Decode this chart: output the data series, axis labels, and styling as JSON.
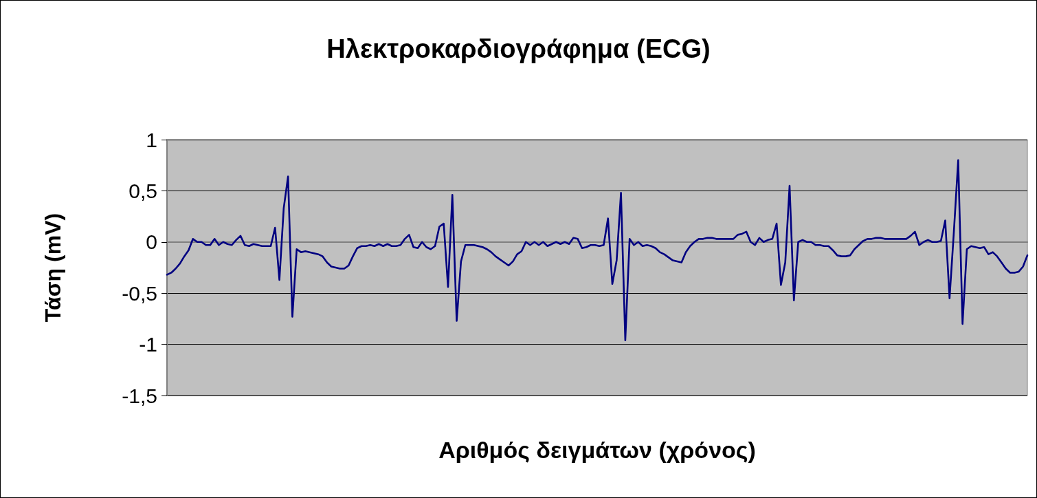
{
  "chart_data": {
    "type": "line",
    "title": "Ηλεκτροκαρδιογράφημα (ECG)",
    "xlabel": "Αριθμός δειγμάτων (χρόνος)",
    "ylabel": "Τάση (mV)",
    "categories": [
      null,
      null,
      null,
      null,
      null,
      null,
      null,
      null,
      null,
      null,
      null,
      null,
      null,
      null,
      null,
      null,
      null,
      null,
      null,
      null,
      null,
      null,
      null,
      null,
      null,
      null,
      null,
      null,
      null,
      null,
      null,
      null,
      null,
      null,
      null,
      null,
      null,
      null,
      null,
      null,
      null,
      null,
      null,
      null,
      null,
      null,
      null,
      null,
      null,
      null,
      null,
      null,
      null,
      null,
      null,
      null,
      null,
      null,
      null,
      null,
      null,
      null,
      null,
      null,
      null,
      null,
      null,
      null,
      null,
      null,
      null,
      null,
      null,
      null,
      null,
      null,
      null,
      null,
      null,
      null,
      null,
      null,
      null,
      null,
      null,
      null,
      null,
      null,
      null,
      null,
      null,
      null,
      null,
      null,
      null,
      null,
      null,
      null,
      null,
      null,
      null,
      null,
      null,
      null,
      null,
      null,
      null,
      null,
      null,
      null,
      null,
      null,
      null,
      null,
      null,
      null,
      null,
      null,
      null,
      null,
      null,
      null,
      null,
      null,
      null,
      null,
      null,
      null,
      null,
      null,
      null,
      null,
      null,
      null,
      null,
      null,
      null,
      null,
      null,
      null,
      null,
      null,
      null,
      null,
      null,
      null,
      null,
      null,
      null,
      null,
      null,
      null,
      null,
      null,
      null,
      null,
      null,
      null,
      null,
      null,
      null,
      null,
      null,
      null,
      null,
      null,
      null,
      null,
      null,
      null,
      null,
      null,
      null,
      null,
      null,
      null,
      null,
      null,
      null,
      null,
      null,
      null,
      null,
      null,
      null,
      null,
      null,
      null,
      null,
      null,
      null,
      null,
      null,
      null,
      null,
      null,
      null,
      null,
      null,
      null
    ],
    "series": [
      {
        "color": "#000080",
        "values": [
          -0.32,
          -0.3,
          -0.26,
          -0.21,
          -0.14,
          -0.08,
          0.03,
          0,
          0,
          -0.03,
          -0.03,
          0.03,
          -0.03,
          0,
          -0.02,
          -0.03,
          0.02,
          0.06,
          -0.03,
          -0.04,
          -0.02,
          -0.03,
          -0.04,
          -0.04,
          -0.04,
          0.14,
          -0.37,
          0.33,
          0.64,
          -0.73,
          -0.07,
          -0.1,
          -0.09,
          -0.1,
          -0.11,
          -0.12,
          -0.14,
          -0.2,
          -0.24,
          -0.25,
          -0.26,
          -0.26,
          -0.23,
          -0.14,
          -0.06,
          -0.04,
          -0.04,
          -0.03,
          -0.04,
          -0.02,
          -0.04,
          -0.02,
          -0.04,
          -0.04,
          -0.03,
          0.03,
          0.07,
          -0.05,
          -0.06,
          0,
          -0.05,
          -0.07,
          -0.04,
          0.15,
          0.18,
          -0.44,
          0.46,
          -0.77,
          -0.19,
          -0.03,
          -0.03,
          -0.03,
          -0.04,
          -0.05,
          -0.07,
          -0.1,
          -0.14,
          -0.17,
          -0.2,
          -0.23,
          -0.19,
          -0.12,
          -0.09,
          0,
          -0.03,
          0,
          -0.03,
          0,
          -0.04,
          -0.02,
          0,
          -0.02,
          0,
          -0.02,
          0.04,
          0.03,
          -0.06,
          -0.05,
          -0.03,
          -0.03,
          -0.04,
          -0.03,
          0.23,
          -0.41,
          -0.18,
          0.48,
          -0.96,
          0.03,
          -0.03,
          0,
          -0.04,
          -0.03,
          -0.04,
          -0.06,
          -0.1,
          -0.12,
          -0.15,
          -0.18,
          -0.19,
          -0.2,
          -0.1,
          -0.04,
          0,
          0.03,
          0.03,
          0.04,
          0.04,
          0.03,
          0.03,
          0.03,
          0.03,
          0.03,
          0.07,
          0.08,
          0.1,
          0,
          -0.03,
          0.04,
          0,
          0.02,
          0.03,
          0.18,
          -0.42,
          -0.2,
          0.55,
          -0.57,
          0,
          0.02,
          0,
          0,
          -0.03,
          -0.03,
          -0.04,
          -0.04,
          -0.08,
          -0.13,
          -0.14,
          -0.14,
          -0.13,
          -0.07,
          -0.03,
          0.01,
          0.03,
          0.03,
          0.04,
          0.04,
          0.03,
          0.03,
          0.03,
          0.03,
          0.03,
          0.03,
          0.06,
          0.1,
          -0.03,
          0,
          0.02,
          0,
          0,
          0.01,
          0.21,
          -0.55,
          0.1,
          0.8,
          -0.8,
          -0.07,
          -0.04,
          -0.05,
          -0.06,
          -0.05,
          -0.12,
          -0.1,
          -0.14,
          -0.2,
          -0.26,
          -0.3,
          -0.3,
          -0.29,
          -0.24,
          -0.13
        ]
      }
    ],
    "ylim": [
      -1.5,
      1
    ],
    "yticks": [
      {
        "value": -1.5,
        "label": "-1,5"
      },
      {
        "value": -1,
        "label": "-1"
      },
      {
        "value": -0.5,
        "label": "-0,5"
      },
      {
        "value": 0,
        "label": "0"
      },
      {
        "value": 0.5,
        "label": "0,5"
      },
      {
        "value": 1,
        "label": "1"
      }
    ],
    "grid": "y",
    "line_style": "solid",
    "tick_labels": "y"
  }
}
